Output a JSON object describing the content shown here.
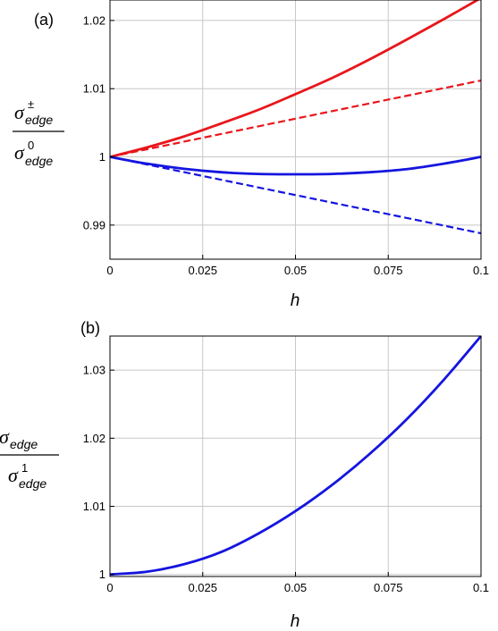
{
  "chart_data": [
    {
      "panel": "(a)",
      "type": "line",
      "xlabel": "h",
      "ylabel": {
        "numerator": {
          "symbol": "σ",
          "sup": "±",
          "sub": "edge"
        },
        "denominator": {
          "symbol": "σ",
          "sup": "0",
          "sub": "edge"
        }
      },
      "xlim": [
        0,
        0.1
      ],
      "ylim": [
        0.985,
        1.023
      ],
      "xticks": [
        0,
        0.025,
        0.05,
        0.075,
        0.1
      ],
      "xtick_labels": [
        "0",
        "0.025",
        "0.05",
        "0.075",
        "0.1"
      ],
      "yticks": [
        0.99,
        1,
        1.01,
        1.02
      ],
      "ytick_labels": [
        "0.99",
        "1",
        "1.01",
        "1.02"
      ],
      "grid": true,
      "series": [
        {
          "color": "#e8161b",
          "style": "solid",
          "x": [
            0,
            0.01,
            0.02,
            0.03,
            0.04,
            0.05,
            0.06,
            0.07,
            0.08,
            0.09,
            0.1
          ],
          "y": [
            1.0,
            1.0014,
            1.003,
            1.0049,
            1.0069,
            1.0092,
            1.0116,
            1.0143,
            1.0172,
            1.0202,
            1.0233
          ]
        },
        {
          "color": "#e8161b",
          "style": "dashed",
          "x": [
            0,
            0.1
          ],
          "y": [
            1.0,
            1.0112
          ]
        },
        {
          "color": "#1515e0",
          "style": "solid",
          "x": [
            0,
            0.01,
            0.02,
            0.03,
            0.04,
            0.05,
            0.06,
            0.07,
            0.08,
            0.09,
            0.1
          ],
          "y": [
            1.0,
            0.999,
            0.99825,
            0.99775,
            0.9975,
            0.99745,
            0.9975,
            0.99775,
            0.9982,
            0.999,
            1.0
          ]
        },
        {
          "color": "#1515e0",
          "style": "dashed",
          "x": [
            0,
            0.1
          ],
          "y": [
            1.0,
            0.9888
          ]
        }
      ]
    },
    {
      "panel": "(b)",
      "type": "line",
      "xlabel": "h",
      "ylabel": {
        "numerator": {
          "symbol": "σ",
          "sup": "",
          "sub": "edge"
        },
        "denominator": {
          "symbol": "σ",
          "sup": "1",
          "sub": "edge"
        }
      },
      "xlim": [
        0,
        0.1
      ],
      "ylim": [
        0.9997,
        1.035
      ],
      "xticks": [
        0,
        0.025,
        0.05,
        0.075,
        0.1
      ],
      "xtick_labels": [
        "0",
        "0.025",
        "0.05",
        "0.075",
        "0.1"
      ],
      "yticks": [
        1,
        1.01,
        1.02,
        1.03
      ],
      "ytick_labels": [
        "1",
        "1.01",
        "1.02",
        "1.03"
      ],
      "grid": true,
      "series": [
        {
          "color": "#1515e0",
          "style": "solid",
          "x": [
            0,
            0.01,
            0.02,
            0.03,
            0.04,
            0.05,
            0.06,
            0.07,
            0.08,
            0.09,
            0.1
          ],
          "y": [
            1.0,
            1.0004,
            1.0015,
            1.0033,
            1.006,
            1.0093,
            1.0132,
            1.0177,
            1.0228,
            1.0286,
            1.035
          ]
        }
      ]
    }
  ]
}
